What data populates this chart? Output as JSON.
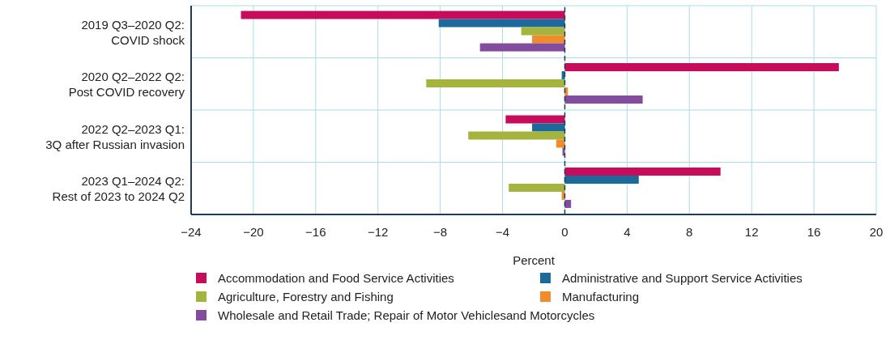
{
  "chart_data": {
    "type": "bar",
    "orientation": "horizontal",
    "xlabel": "Percent",
    "categories": [
      "2019 Q3–2020 Q2: COVID shock",
      "2020 Q2–2022 Q2: Post COVID recovery",
      "2022 Q2–2023 Q1: 3Q after Russian invasion",
      "2023 Q1–2024 Q2: Rest of 2023 to 2024 Q2"
    ],
    "series": [
      {
        "name": "Accommodation and Food Service Activities",
        "color": "#c80c5c",
        "values": [
          -20.8,
          17.6,
          -3.8,
          10.0
        ]
      },
      {
        "name": "Administrative and Support Service Activities",
        "color": "#1c6a9c",
        "values": [
          -8.1,
          -0.2,
          -2.1,
          4.75
        ]
      },
      {
        "name": "Agriculture, Forestry and Fishing",
        "color": "#a4b43c",
        "values": [
          -2.8,
          -8.9,
          -6.2,
          -3.6
        ]
      },
      {
        "name": "Manufacturing",
        "color": "#f08c2c",
        "values": [
          -2.1,
          0.2,
          -0.55,
          -0.2
        ]
      },
      {
        "name": "Wholesale and Retail Trade; Repair of Motor Vehiclesand Motorcycles",
        "color": "#844c9c",
        "values": [
          -5.45,
          5.0,
          -0.15,
          0.4
        ]
      }
    ],
    "xlim": [
      -24,
      20
    ],
    "xticks": [
      -24,
      -20,
      -16,
      -12,
      -8,
      -4,
      0,
      4,
      8,
      12,
      16,
      20
    ],
    "ref_lines": [
      {
        "axis": "x",
        "value": 0,
        "color": "#1f3b5a",
        "line_style": "dashed"
      }
    ],
    "grid": true,
    "legend": "bottom"
  }
}
